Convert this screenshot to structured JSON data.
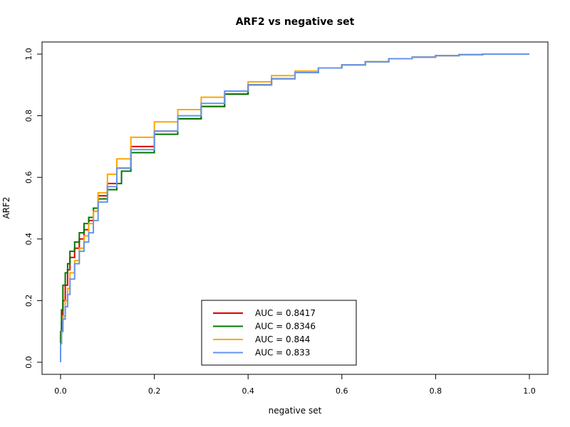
{
  "chart_data": {
    "type": "line",
    "title": "ARF2 vs negative set",
    "xlabel": "negative set",
    "ylabel": "ARF2",
    "xlim": [
      0,
      1
    ],
    "ylim": [
      0,
      1
    ],
    "xticks": [
      "0.0",
      "0.2",
      "0.4",
      "0.6",
      "0.8",
      "1.0"
    ],
    "yticks": [
      "0.0",
      "0.2",
      "0.4",
      "0.6",
      "0.8",
      "1.0"
    ],
    "grid": false,
    "legend_position": "bottom-center",
    "series": [
      {
        "name": "AUC = 0.8417",
        "color": "#dd0000",
        "x": [
          0,
          0.002,
          0.005,
          0.01,
          0.015,
          0.02,
          0.03,
          0.04,
          0.05,
          0.06,
          0.07,
          0.08,
          0.1,
          0.12,
          0.15,
          0.2,
          0.25,
          0.3,
          0.35,
          0.4,
          0.45,
          0.5,
          0.55,
          0.6,
          0.65,
          0.7,
          0.75,
          0.8,
          0.85,
          0.9,
          1.0
        ],
        "y": [
          0,
          0.08,
          0.13,
          0.2,
          0.25,
          0.3,
          0.34,
          0.37,
          0.4,
          0.43,
          0.46,
          0.49,
          0.54,
          0.58,
          0.63,
          0.7,
          0.75,
          0.79,
          0.83,
          0.87,
          0.9,
          0.92,
          0.94,
          0.955,
          0.965,
          0.975,
          0.985,
          0.99,
          0.995,
          0.998,
          1.0
        ]
      },
      {
        "name": "AUC = 0.8346",
        "color": "#007700",
        "x": [
          0,
          0.002,
          0.005,
          0.01,
          0.015,
          0.02,
          0.03,
          0.04,
          0.05,
          0.06,
          0.07,
          0.08,
          0.1,
          0.12,
          0.13,
          0.15,
          0.2,
          0.25,
          0.3,
          0.35,
          0.4,
          0.45,
          0.5,
          0.55,
          0.6,
          0.65,
          0.7,
          0.75,
          0.8,
          0.85,
          0.9,
          1.0
        ],
        "y": [
          0,
          0.1,
          0.17,
          0.25,
          0.29,
          0.32,
          0.36,
          0.39,
          0.42,
          0.45,
          0.47,
          0.5,
          0.53,
          0.56,
          0.58,
          0.62,
          0.68,
          0.74,
          0.79,
          0.83,
          0.87,
          0.9,
          0.92,
          0.94,
          0.955,
          0.965,
          0.975,
          0.985,
          0.99,
          0.995,
          0.998,
          1.0
        ]
      },
      {
        "name": "AUC = 0.844",
        "color": "#ffa500",
        "x": [
          0,
          0.002,
          0.005,
          0.01,
          0.015,
          0.02,
          0.03,
          0.04,
          0.05,
          0.06,
          0.07,
          0.08,
          0.1,
          0.12,
          0.15,
          0.2,
          0.25,
          0.3,
          0.35,
          0.4,
          0.45,
          0.5,
          0.55,
          0.6,
          0.65,
          0.7,
          0.75,
          0.8,
          0.85,
          0.9,
          1.0
        ],
        "y": [
          0,
          0.06,
          0.1,
          0.15,
          0.2,
          0.24,
          0.29,
          0.33,
          0.37,
          0.41,
          0.45,
          0.49,
          0.55,
          0.61,
          0.66,
          0.73,
          0.78,
          0.82,
          0.86,
          0.88,
          0.91,
          0.93,
          0.945,
          0.955,
          0.965,
          0.975,
          0.985,
          0.99,
          0.995,
          0.998,
          1.0
        ]
      },
      {
        "name": "AUC = 0.833",
        "color": "#6495ed",
        "x": [
          0,
          0.002,
          0.005,
          0.01,
          0.015,
          0.02,
          0.03,
          0.04,
          0.05,
          0.06,
          0.07,
          0.08,
          0.1,
          0.12,
          0.15,
          0.2,
          0.25,
          0.3,
          0.35,
          0.4,
          0.45,
          0.5,
          0.55,
          0.6,
          0.65,
          0.7,
          0.75,
          0.8,
          0.85,
          0.9,
          1.0
        ],
        "y": [
          0,
          0.06,
          0.1,
          0.14,
          0.18,
          0.22,
          0.27,
          0.32,
          0.36,
          0.39,
          0.42,
          0.46,
          0.52,
          0.57,
          0.63,
          0.69,
          0.75,
          0.8,
          0.84,
          0.88,
          0.9,
          0.92,
          0.94,
          0.955,
          0.965,
          0.975,
          0.985,
          0.99,
          0.995,
          0.998,
          1.0
        ]
      }
    ]
  }
}
